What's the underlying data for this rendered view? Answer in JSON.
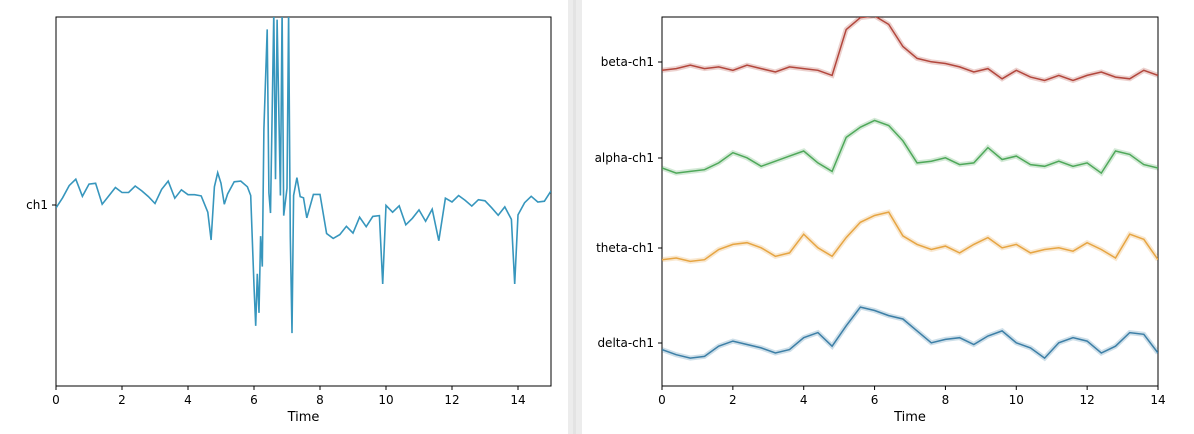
{
  "chart_data": [
    {
      "type": "line",
      "xlabel": "Time",
      "ylabel": "",
      "xlim": [
        0,
        15
      ],
      "xticks": [
        0,
        2,
        4,
        6,
        8,
        10,
        12,
        14
      ],
      "ytick_labels": [
        "ch1"
      ],
      "grid": false,
      "color": "#3796bd",
      "series": [
        {
          "name": "ch1",
          "x": [
            0,
            0.2,
            0.4,
            0.6,
            0.8,
            1.0,
            1.2,
            1.4,
            1.6,
            1.8,
            2.0,
            2.2,
            2.4,
            2.6,
            2.8,
            3.0,
            3.2,
            3.4,
            3.6,
            3.8,
            4.0,
            4.2,
            4.4,
            4.6,
            4.7,
            4.8,
            4.9,
            5.0,
            5.1,
            5.2,
            5.4,
            5.6,
            5.8,
            5.9,
            6.0,
            6.05,
            6.1,
            6.15,
            6.2,
            6.25,
            6.3,
            6.4,
            6.45,
            6.5,
            6.6,
            6.65,
            6.7,
            6.8,
            6.85,
            6.9,
            7.0,
            7.05,
            7.1,
            7.15,
            7.2,
            7.3,
            7.4,
            7.5,
            7.6,
            7.8,
            8.0,
            8.2,
            8.4,
            8.6,
            8.8,
            9.0,
            9.2,
            9.4,
            9.6,
            9.8,
            9.9,
            10.0,
            10.2,
            10.4,
            10.6,
            10.8,
            11.0,
            11.2,
            11.4,
            11.6,
            11.8,
            12.0,
            12.2,
            12.4,
            12.6,
            12.8,
            13.0,
            13.2,
            13.4,
            13.6,
            13.8,
            13.9,
            14.0,
            14.2,
            14.4,
            14.6,
            14.8,
            15.0
          ],
          "y": [
            0.2,
            0.5,
            0.9,
            1.0,
            0.7,
            1.1,
            0.9,
            0.4,
            0.6,
            0.8,
            0.3,
            0.9,
            1.0,
            0.5,
            0.8,
            0.2,
            0.7,
            0.9,
            0.6,
            0.8,
            0.3,
            0.9,
            0.6,
            -0.5,
            -2.2,
            1.2,
            1.7,
            0.9,
            0.4,
            0.7,
            1.1,
            0.9,
            1.2,
            0.5,
            -4.5,
            -6.0,
            -3.5,
            -5.8,
            -2.0,
            -3.0,
            4.0,
            9.0,
            1.0,
            -0.3,
            10.0,
            1.0,
            10.0,
            0.5,
            10.0,
            -0.2,
            1.0,
            10.0,
            -2.0,
            -6.5,
            0.5,
            1.2,
            0.8,
            0.5,
            -0.8,
            0.2,
            0.8,
            -1.5,
            -2.0,
            -1.2,
            -1.0,
            -1.6,
            -1.0,
            -0.9,
            -0.6,
            -0.8,
            -3.8,
            0.1,
            -0.5,
            -0.4,
            -0.8,
            -0.7,
            -0.5,
            -0.5,
            -0.1,
            -2.0,
            0.0,
            0.4,
            0.5,
            0.0,
            0.3,
            0.4,
            0.1,
            -0.5,
            -0.3,
            -0.1,
            -1.0,
            -3.8,
            -0.4,
            0.0,
            0.1,
            0.4,
            0.2,
            0.5
          ]
        }
      ]
    },
    {
      "type": "line",
      "xlabel": "Time",
      "ylabel": "",
      "xlim": [
        0,
        14
      ],
      "xticks": [
        0,
        2,
        4,
        6,
        8,
        10,
        12,
        14
      ],
      "ytick_labels": [
        "beta-ch1",
        "alpha-ch1",
        "theta-ch1",
        "delta-ch1"
      ],
      "grid": false,
      "x": [
        0,
        0.4,
        0.8,
        1.2,
        1.6,
        2.0,
        2.4,
        2.8,
        3.2,
        3.6,
        4.0,
        4.4,
        4.8,
        5.2,
        5.6,
        6.0,
        6.4,
        6.8,
        7.2,
        7.6,
        8.0,
        8.4,
        8.8,
        9.2,
        9.6,
        10.0,
        10.4,
        10.8,
        11.2,
        11.6,
        12.0,
        12.4,
        12.8,
        13.2,
        13.6,
        14.0
      ],
      "series": [
        {
          "name": "beta-ch1",
          "color": "#b2473d",
          "values": [
            0.1,
            0.2,
            0.4,
            0.2,
            0.3,
            0.1,
            0.4,
            0.2,
            0.0,
            0.3,
            0.2,
            0.1,
            -0.2,
            2.5,
            3.2,
            3.3,
            2.8,
            1.5,
            0.8,
            0.6,
            0.5,
            0.3,
            0.0,
            0.2,
            -0.4,
            0.1,
            -0.3,
            -0.5,
            -0.2,
            -0.5,
            -0.2,
            0.0,
            -0.3,
            -0.4,
            0.1,
            -0.2
          ]
        },
        {
          "name": "alpha-ch1",
          "color": "#4fa85a",
          "values": [
            0.0,
            -0.3,
            -0.2,
            -0.1,
            0.3,
            0.9,
            0.6,
            0.1,
            0.4,
            0.7,
            1.0,
            0.3,
            -0.2,
            1.8,
            2.4,
            2.8,
            2.5,
            1.6,
            0.3,
            0.4,
            0.6,
            0.2,
            0.3,
            1.2,
            0.5,
            0.7,
            0.2,
            0.1,
            0.4,
            0.1,
            0.3,
            -0.3,
            1.0,
            0.8,
            0.2,
            0.0
          ]
        },
        {
          "name": "theta-ch1",
          "color": "#e6a543",
          "values": [
            -0.1,
            0.0,
            -0.2,
            -0.1,
            0.5,
            0.8,
            0.9,
            0.6,
            0.1,
            0.3,
            1.4,
            0.6,
            0.1,
            1.2,
            2.1,
            2.5,
            2.7,
            1.3,
            0.8,
            0.5,
            0.7,
            0.3,
            0.8,
            1.2,
            0.6,
            0.8,
            0.3,
            0.5,
            0.6,
            0.4,
            0.9,
            0.5,
            0.0,
            1.4,
            1.1,
            -0.1
          ]
        },
        {
          "name": "delta-ch1",
          "color": "#3d7fa6",
          "values": [
            0.2,
            -0.1,
            -0.3,
            -0.2,
            0.4,
            0.7,
            0.5,
            0.3,
            0.0,
            0.2,
            0.9,
            1.2,
            0.4,
            1.6,
            2.7,
            2.5,
            2.2,
            2.0,
            1.3,
            0.6,
            0.8,
            0.9,
            0.5,
            1.0,
            1.3,
            0.6,
            0.3,
            -0.3,
            0.6,
            0.9,
            0.7,
            0.0,
            0.4,
            1.2,
            1.1,
            0.0
          ]
        }
      ]
    }
  ]
}
